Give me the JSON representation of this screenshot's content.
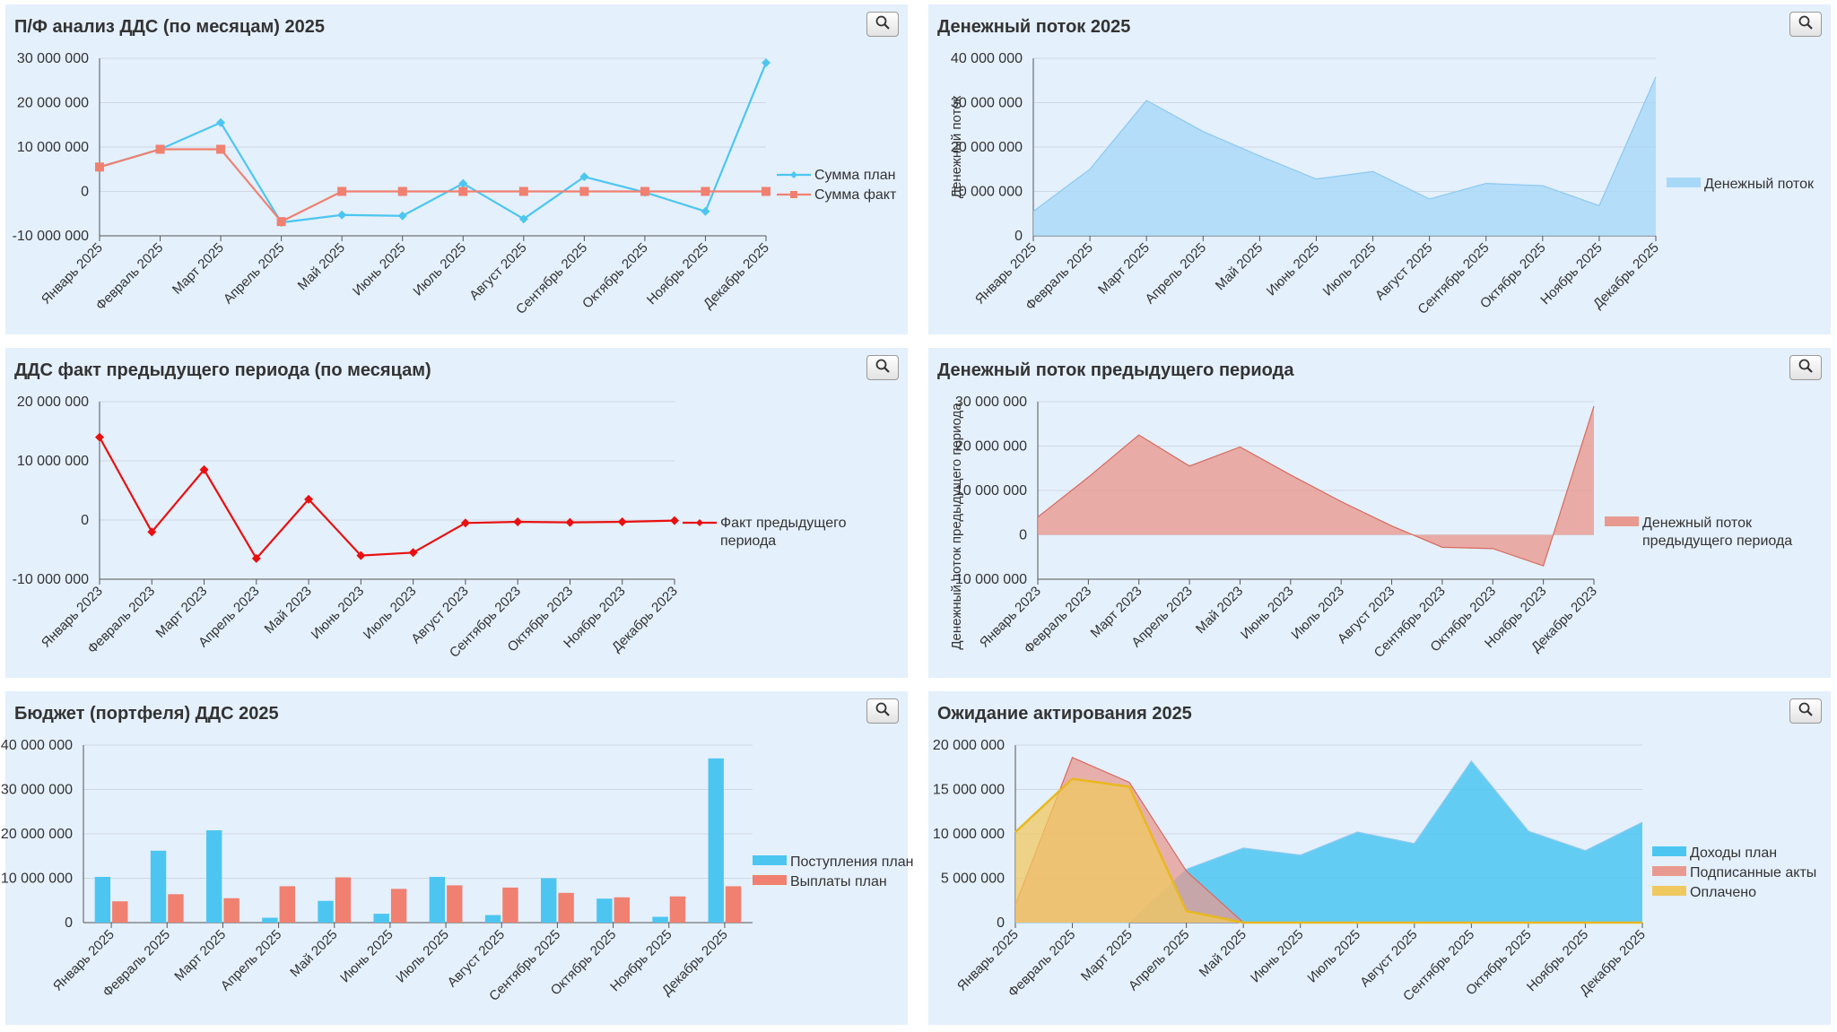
{
  "icons": {
    "zoom": "magnifier-icon"
  },
  "colors": {
    "panel_bg": "#e4f0fc",
    "blue": "#4cc6f1",
    "salmon": "#f08070",
    "red": "#e81010",
    "area_blue": "#a8d8f8",
    "area_red": "#e89a90",
    "gold": "#f0c860"
  },
  "panels": [
    {
      "id": "p1",
      "title": "П/Ф анализ ДДС (по месяцам) 2025"
    },
    {
      "id": "p2",
      "title": "Денежный поток 2025"
    },
    {
      "id": "p3",
      "title": "ДДС факт предыдущего периода (по месяцам)"
    },
    {
      "id": "p4",
      "title": "Денежный поток предыдущего периода"
    },
    {
      "id": "p5",
      "title": "Бюджет (портфеля) ДДС 2025"
    },
    {
      "id": "p6",
      "title": "Ожидание актирования 2025"
    }
  ],
  "chart_data": [
    {
      "type": "line",
      "title": "П/Ф анализ ДДС (по месяцам) 2025",
      "categories": [
        "Январь 2025",
        "Февраль 2025",
        "Март 2025",
        "Апрель 2025",
        "Май 2025",
        "Июнь 2025",
        "Июль 2025",
        "Август 2025",
        "Сентябрь 2025",
        "Октябрь 2025",
        "Ноябрь 2025",
        "Декабрь 2025"
      ],
      "yticks": [
        "30 000 000",
        "20 000 000",
        "10 000 000",
        "0",
        "-10 000 000"
      ],
      "ylim": [
        -10000000,
        30000000
      ],
      "series": [
        {
          "name": "Сумма план",
          "color": "#4cc6f1",
          "marker": "diamond",
          "values": [
            5500000,
            9500000,
            15500000,
            -7000000,
            -5300000,
            -5500000,
            1800000,
            -6200000,
            3300000,
            -200000,
            -4500000,
            29000000
          ]
        },
        {
          "name": "Сумма факт",
          "color": "#f08070",
          "marker": "square",
          "values": [
            5500000,
            9500000,
            9500000,
            -6800000,
            0,
            0,
            0,
            0,
            0,
            0,
            0,
            0
          ]
        }
      ],
      "legend": "right"
    },
    {
      "type": "area",
      "title": "Денежный поток 2025",
      "ylabel": "Денежный поток",
      "categories": [
        "Январь 2025",
        "Февраль 2025",
        "Март 2025",
        "Апрель 2025",
        "Май 2025",
        "Июнь 2025",
        "Июль 2025",
        "Август 2025",
        "Сентябрь 2025",
        "Октябрь 2025",
        "Ноябрь 2025",
        "Декабрь 2025"
      ],
      "yticks": [
        "40 000 000",
        "30 000 000",
        "20 000 000",
        "10 000 000",
        "0"
      ],
      "ylim": [
        0,
        40000000
      ],
      "series": [
        {
          "name": "Денежный поток",
          "color": "#a8d8f8",
          "values": [
            5500000,
            15000000,
            30500000,
            23500000,
            18000000,
            12800000,
            14500000,
            8300000,
            11800000,
            11300000,
            6800000,
            35800000
          ]
        }
      ],
      "legend": "right"
    },
    {
      "type": "line",
      "title": "ДДС факт предыдущего периода (по месяцам)",
      "categories": [
        "Январь 2023",
        "Февраль 2023",
        "Март 2023",
        "Апрель 2023",
        "Май 2023",
        "Июнь 2023",
        "Июль 2023",
        "Август 2023",
        "Сентябрь 2023",
        "Октябрь 2023",
        "Ноябрь 2023",
        "Декабрь 2023"
      ],
      "yticks": [
        "20 000 000",
        "10 000 000",
        "0",
        "-10 000 000"
      ],
      "ylim": [
        -10000000,
        20000000
      ],
      "series": [
        {
          "name": "Факт предыдущего периода",
          "name_lines": [
            "Факт предыдущего",
            "периода"
          ],
          "color": "#e81010",
          "marker": "diamond",
          "values": [
            14000000,
            -2000000,
            8500000,
            -6500000,
            3500000,
            -6000000,
            -5500000,
            -500000,
            -300000,
            -400000,
            -300000,
            -100000
          ]
        }
      ],
      "legend": "right"
    },
    {
      "type": "area",
      "title": "Денежный поток предыдущего периода",
      "ylabel": "Денежный поток предыдущего периода",
      "categories": [
        "Январь 2023",
        "Февраль 2023",
        "Март 2023",
        "Апрель 2023",
        "Май 2023",
        "Июнь 2023",
        "Июль 2023",
        "Август 2023",
        "Сентябрь 2023",
        "Октябрь 2023",
        "Ноябрь 2023",
        "Декабрь 2023"
      ],
      "yticks": [
        "30 000 000",
        "20 000 000",
        "10 000 000",
        "0",
        "-10 000 000"
      ],
      "ylim": [
        -10000000,
        30000000
      ],
      "series": [
        {
          "name": "Денежный поток предыдущего периода",
          "name_lines": [
            "Денежный поток",
            "предыдущего периода"
          ],
          "color": "#e89a90",
          "values": [
            4000000,
            13000000,
            22500000,
            15500000,
            19800000,
            13500000,
            7500000,
            2000000,
            -2800000,
            -3100000,
            -7000000,
            29000000
          ]
        }
      ],
      "legend": "right"
    },
    {
      "type": "bar",
      "title": "Бюджет (портфеля) ДДС 2025",
      "categories": [
        "Январь 2025",
        "Февраль 2025",
        "Март 2025",
        "Апрель 2025",
        "Май 2025",
        "Июнь 2025",
        "Июль 2025",
        "Август 2025",
        "Сентябрь 2025",
        "Октябрь 2025",
        "Ноябрь 2025",
        "Декабрь 2025"
      ],
      "yticks": [
        "40 000 000",
        "30 000 000",
        "20 000 000",
        "10 000 000",
        "0"
      ],
      "ylim": [
        0,
        40000000
      ],
      "series": [
        {
          "name": "Поступления план",
          "color": "#4cc6f1",
          "values": [
            10300000,
            16200000,
            20800000,
            1100000,
            4900000,
            2000000,
            10300000,
            1700000,
            10000000,
            5400000,
            1300000,
            37000000
          ]
        },
        {
          "name": "Выплаты план",
          "color": "#f08070",
          "values": [
            4800000,
            6400000,
            5500000,
            8200000,
            10200000,
            7600000,
            8400000,
            7900000,
            6700000,
            5700000,
            5900000,
            8200000
          ]
        }
      ],
      "legend": "right"
    },
    {
      "type": "area",
      "title": "Ожидание актирования 2025",
      "categories": [
        "Январь 2025",
        "Февраль 2025",
        "Март 2025",
        "Апрель 2025",
        "Май 2025",
        "Июнь 2025",
        "Июль 2025",
        "Август 2025",
        "Сентябрь 2025",
        "Октябрь 2025",
        "Ноябрь 2025",
        "Декабрь 2025"
      ],
      "yticks": [
        "20 000 000",
        "15 000 000",
        "10 000 000",
        "5 000 000",
        "0"
      ],
      "ylim": [
        0,
        20000000
      ],
      "series": [
        {
          "name": "Доходы план",
          "color": "#4cc6f1",
          "values": [
            0,
            0,
            0,
            6000000,
            8400000,
            7600000,
            10200000,
            8900000,
            18200000,
            10300000,
            8100000,
            11300000
          ]
        },
        {
          "name": "Подписанные акты",
          "color": "#e89a90",
          "values": [
            2000000,
            18600000,
            15800000,
            5800000,
            0,
            0,
            0,
            0,
            0,
            0,
            0,
            0
          ]
        },
        {
          "name": "Оплачено",
          "color": "#f0c860",
          "values": [
            10200000,
            16200000,
            15300000,
            1300000,
            0,
            0,
            0,
            0,
            0,
            0,
            0,
            0
          ]
        }
      ],
      "legend": "right"
    }
  ]
}
